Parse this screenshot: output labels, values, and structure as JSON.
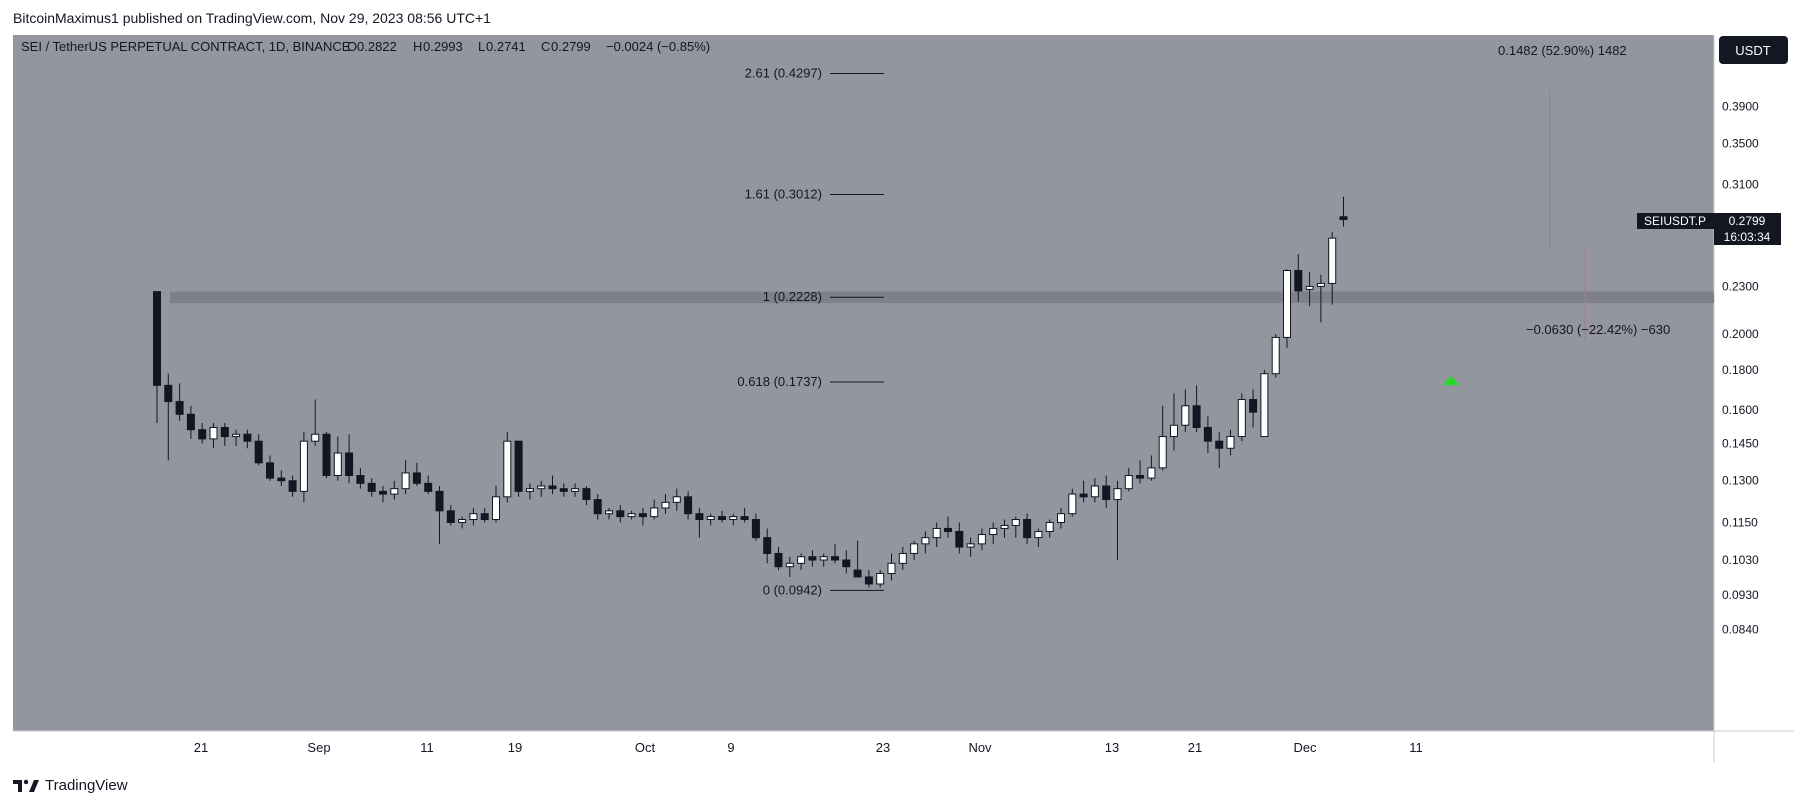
{
  "header": {
    "published": "BitcoinMaximus1 published on TradingView.com, Nov 29, 2023 08:56 UTC+1"
  },
  "chart_data": {
    "type": "candlestick",
    "title": "SEI / TetherUS PERPETUAL CONTRACT, 1D, BINANCE",
    "ohlc": {
      "o_label": "O",
      "o": "0.2822",
      "h_label": "H",
      "h": "0.2993",
      "l_label": "L",
      "l": "0.2741",
      "c_label": "C",
      "c": "0.2799",
      "change": "−0.0024 (−0.85%)"
    },
    "currency": "USDT",
    "symbol_label": "SEIUSDT.P",
    "last_price": "0.2799",
    "countdown": "16:03:34",
    "y_ticks": [
      "0.3900",
      "0.3500",
      "0.3100",
      "0.2300",
      "0.2000",
      "0.1800",
      "0.1600",
      "0.1450",
      "0.1300",
      "0.1150",
      "0.1030",
      "0.0930",
      "0.0840"
    ],
    "x_ticks": [
      "21",
      "Sep",
      "11",
      "19",
      "Oct",
      "9",
      "23",
      "Nov",
      "13",
      "21",
      "Dec",
      "11"
    ],
    "fib_levels": [
      {
        "label": "2.61 (0.4297)",
        "price": 0.4297
      },
      {
        "label": "1.61 (0.3012)",
        "price": 0.3012
      },
      {
        "label": "1 (0.2228)",
        "price": 0.2228
      },
      {
        "label": "0.618 (0.1737)",
        "price": 0.1737
      },
      {
        "label": "0 (0.0942)",
        "price": 0.0942
      }
    ],
    "support_zone": {
      "low": 0.219,
      "high": 0.2265
    },
    "measure_up": "0.1482 (52.90%) 1482",
    "measure_down": "−0.0630 (−22.42%) −630",
    "scale": "log",
    "candles": [
      [
        0.2265,
        0.2265,
        0.154,
        0.172
      ],
      [
        0.172,
        0.178,
        0.138,
        0.164
      ],
      [
        0.164,
        0.173,
        0.155,
        0.158
      ],
      [
        0.158,
        0.162,
        0.147,
        0.151
      ],
      [
        0.151,
        0.154,
        0.145,
        0.147
      ],
      [
        0.147,
        0.154,
        0.143,
        0.152
      ],
      [
        0.152,
        0.154,
        0.144,
        0.148
      ],
      [
        0.148,
        0.151,
        0.144,
        0.149
      ],
      [
        0.149,
        0.151,
        0.143,
        0.146
      ],
      [
        0.146,
        0.149,
        0.136,
        0.137
      ],
      [
        0.137,
        0.14,
        0.13,
        0.131
      ],
      [
        0.131,
        0.134,
        0.128,
        0.13
      ],
      [
        0.13,
        0.132,
        0.124,
        0.126
      ],
      [
        0.126,
        0.15,
        0.122,
        0.146
      ],
      [
        0.146,
        0.165,
        0.144,
        0.149
      ],
      [
        0.149,
        0.15,
        0.131,
        0.132
      ],
      [
        0.132,
        0.148,
        0.13,
        0.141
      ],
      [
        0.141,
        0.149,
        0.129,
        0.132
      ],
      [
        0.132,
        0.135,
        0.127,
        0.129
      ],
      [
        0.129,
        0.131,
        0.124,
        0.126
      ],
      [
        0.126,
        0.128,
        0.122,
        0.125
      ],
      [
        0.125,
        0.13,
        0.123,
        0.127
      ],
      [
        0.127,
        0.138,
        0.125,
        0.133
      ],
      [
        0.133,
        0.137,
        0.128,
        0.129
      ],
      [
        0.129,
        0.132,
        0.125,
        0.126
      ],
      [
        0.126,
        0.128,
        0.108,
        0.119
      ],
      [
        0.119,
        0.121,
        0.114,
        0.115
      ],
      [
        0.115,
        0.117,
        0.113,
        0.116
      ],
      [
        0.116,
        0.12,
        0.114,
        0.118
      ],
      [
        0.118,
        0.12,
        0.115,
        0.116
      ],
      [
        0.116,
        0.128,
        0.115,
        0.124
      ],
      [
        0.124,
        0.15,
        0.122,
        0.146
      ],
      [
        0.146,
        0.146,
        0.124,
        0.126
      ],
      [
        0.126,
        0.129,
        0.123,
        0.127
      ],
      [
        0.127,
        0.13,
        0.124,
        0.128
      ],
      [
        0.128,
        0.132,
        0.125,
        0.127
      ],
      [
        0.127,
        0.129,
        0.124,
        0.126
      ],
      [
        0.126,
        0.129,
        0.124,
        0.127
      ],
      [
        0.127,
        0.128,
        0.121,
        0.123
      ],
      [
        0.123,
        0.125,
        0.116,
        0.118
      ],
      [
        0.118,
        0.12,
        0.116,
        0.119
      ],
      [
        0.119,
        0.121,
        0.115,
        0.117
      ],
      [
        0.117,
        0.119,
        0.116,
        0.118
      ],
      [
        0.118,
        0.12,
        0.114,
        0.117
      ],
      [
        0.117,
        0.123,
        0.116,
        0.12
      ],
      [
        0.12,
        0.125,
        0.118,
        0.122
      ],
      [
        0.122,
        0.127,
        0.119,
        0.124
      ],
      [
        0.124,
        0.126,
        0.116,
        0.118
      ],
      [
        0.118,
        0.12,
        0.11,
        0.116
      ],
      [
        0.116,
        0.118,
        0.114,
        0.117
      ],
      [
        0.117,
        0.119,
        0.115,
        0.116
      ],
      [
        0.116,
        0.118,
        0.114,
        0.117
      ],
      [
        0.117,
        0.12,
        0.115,
        0.116
      ],
      [
        0.116,
        0.118,
        0.109,
        0.11
      ],
      [
        0.11,
        0.113,
        0.102,
        0.105
      ],
      [
        0.105,
        0.107,
        0.1,
        0.101
      ],
      [
        0.101,
        0.104,
        0.098,
        0.102
      ],
      [
        0.102,
        0.105,
        0.1,
        0.104
      ],
      [
        0.104,
        0.106,
        0.101,
        0.103
      ],
      [
        0.103,
        0.105,
        0.101,
        0.104
      ],
      [
        0.104,
        0.108,
        0.102,
        0.103
      ],
      [
        0.103,
        0.106,
        0.099,
        0.101
      ],
      [
        0.1,
        0.109,
        0.098,
        0.098
      ],
      [
        0.098,
        0.1,
        0.095,
        0.096
      ],
      [
        0.096,
        0.1,
        0.095,
        0.099
      ],
      [
        0.099,
        0.105,
        0.097,
        0.102
      ],
      [
        0.102,
        0.107,
        0.1,
        0.105
      ],
      [
        0.105,
        0.109,
        0.103,
        0.108
      ],
      [
        0.108,
        0.112,
        0.105,
        0.11
      ],
      [
        0.11,
        0.115,
        0.107,
        0.113
      ],
      [
        0.113,
        0.117,
        0.11,
        0.112
      ],
      [
        0.112,
        0.115,
        0.105,
        0.107
      ],
      [
        0.107,
        0.11,
        0.104,
        0.108
      ],
      [
        0.108,
        0.113,
        0.106,
        0.111
      ],
      [
        0.111,
        0.115,
        0.108,
        0.113
      ],
      [
        0.113,
        0.116,
        0.11,
        0.114
      ],
      [
        0.114,
        0.117,
        0.11,
        0.116
      ],
      [
        0.116,
        0.118,
        0.108,
        0.11
      ],
      [
        0.11,
        0.113,
        0.107,
        0.112
      ],
      [
        0.112,
        0.116,
        0.11,
        0.115
      ],
      [
        0.115,
        0.12,
        0.113,
        0.118
      ],
      [
        0.118,
        0.127,
        0.117,
        0.125
      ],
      [
        0.125,
        0.13,
        0.122,
        0.124
      ],
      [
        0.124,
        0.131,
        0.122,
        0.128
      ],
      [
        0.128,
        0.132,
        0.12,
        0.123
      ],
      [
        0.123,
        0.13,
        0.103,
        0.127
      ],
      [
        0.127,
        0.135,
        0.126,
        0.132
      ],
      [
        0.132,
        0.138,
        0.129,
        0.131
      ],
      [
        0.131,
        0.14,
        0.13,
        0.135
      ],
      [
        0.135,
        0.162,
        0.134,
        0.148
      ],
      [
        0.148,
        0.168,
        0.142,
        0.153
      ],
      [
        0.153,
        0.17,
        0.15,
        0.162
      ],
      [
        0.162,
        0.172,
        0.15,
        0.152
      ],
      [
        0.152,
        0.157,
        0.141,
        0.146
      ],
      [
        0.146,
        0.15,
        0.135,
        0.143
      ],
      [
        0.143,
        0.151,
        0.14,
        0.148
      ],
      [
        0.148,
        0.168,
        0.146,
        0.165
      ],
      [
        0.165,
        0.17,
        0.152,
        0.159
      ],
      [
        0.148,
        0.18,
        0.148,
        0.178
      ],
      [
        0.178,
        0.2,
        0.176,
        0.198
      ],
      [
        0.198,
        0.242,
        0.192,
        0.241
      ],
      [
        0.241,
        0.253,
        0.22,
        0.227
      ],
      [
        0.228,
        0.24,
        0.217,
        0.23
      ],
      [
        0.23,
        0.238,
        0.207,
        0.232
      ],
      [
        0.232,
        0.27,
        0.218,
        0.265
      ],
      [
        0.2822,
        0.2993,
        0.2741,
        0.2799
      ]
    ]
  },
  "footer": {
    "brand": "TradingView"
  },
  "colors": {
    "pane_bg": "#93969e",
    "candle_up": "#ffffff",
    "candle_down": "#131722",
    "text": "#131722",
    "accent_arrow": "#22dd22"
  }
}
